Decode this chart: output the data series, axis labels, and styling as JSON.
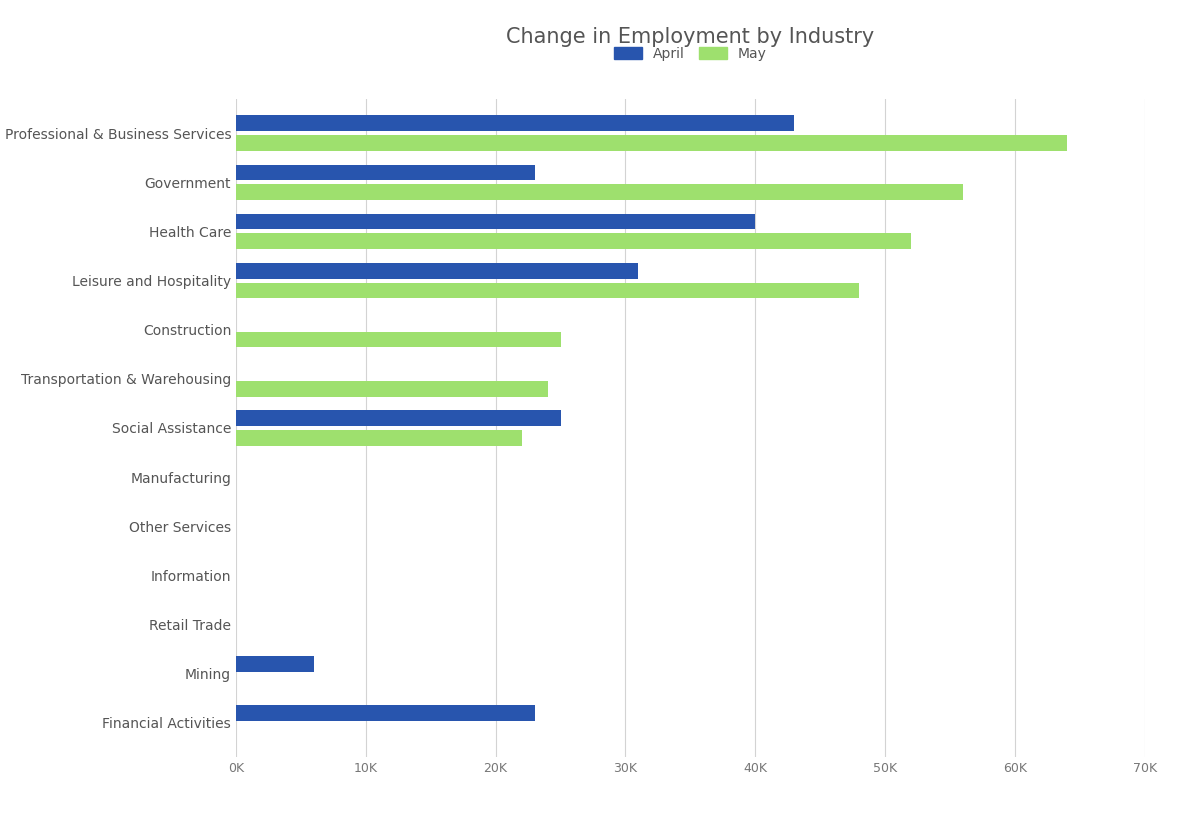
{
  "title": "Change in Employment by Industry",
  "categories": [
    "Professional & Business Services",
    "Government",
    "Health Care",
    "Leisure and Hospitality",
    "Construction",
    "Transportation & Warehousing",
    "Social Assistance",
    "Manufacturing",
    "Other Services",
    "Information",
    "Retail Trade",
    "Mining",
    "Financial Activities"
  ],
  "april_values": [
    43000,
    23000,
    40000,
    31000,
    0,
    0,
    25000,
    0,
    0,
    0,
    0,
    6000,
    23000
  ],
  "may_values": [
    64000,
    56000,
    52000,
    48000,
    25000,
    24000,
    22000,
    0,
    0,
    0,
    0,
    0,
    0
  ],
  "april_color": "#2855AE",
  "may_color": "#9EE06E",
  "background_color": "#FFFFFF",
  "grid_color": "#D3D3D3",
  "legend_april": "April",
  "legend_may": "May",
  "xlim": [
    0,
    70000
  ],
  "xtick_values": [
    0,
    10000,
    20000,
    30000,
    40000,
    50000,
    60000,
    70000
  ],
  "xtick_labels": [
    "0K",
    "10K",
    "20K",
    "30K",
    "40K",
    "50K",
    "60K",
    "70K"
  ],
  "title_fontsize": 15,
  "label_fontsize": 10,
  "tick_fontsize": 9
}
